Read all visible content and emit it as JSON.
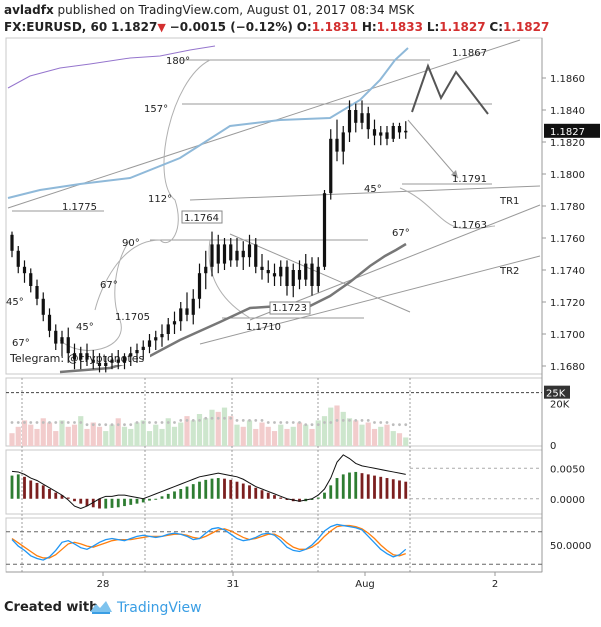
{
  "header": {
    "author": "avladfx",
    "published_text": "published on TradingView.com, August 01, 2017 08:34 MSK",
    "symbol": "FX:EURUSD, 60",
    "last": "1.1827",
    "change": "−0.0015 (−0.12%)",
    "open_label": "O:",
    "open": "1.1831",
    "high_label": "H:",
    "high": "1.1833",
    "low_label": "L:",
    "low": "1.1827",
    "close_label": "C:",
    "close": "1.1827"
  },
  "footer": {
    "created_with": "Created with",
    "brand": "TradingView"
  },
  "colors": {
    "up": "#2e7d32",
    "down": "#7b1f1f",
    "candle": "#111111",
    "ma_blue": "#8fb9d9",
    "ma_purple": "#9575cd",
    "ma_gray": "#777777",
    "stoch_k": "#2196f3",
    "stoch_d": "#ff7f0e",
    "vol_up": "#cde6cd",
    "vol_down": "#f2cccc",
    "line": "#999999",
    "text": "#222222"
  },
  "chart_data": [
    {
      "type": "candlestick",
      "pane": "price",
      "ylim": [
        1.1675,
        1.1885
      ],
      "y_ticks": [
        "1.1860",
        "1.1840",
        "1.1820",
        "1.1800",
        "1.1780",
        "1.1760",
        "1.1740",
        "1.1720",
        "1.1700",
        "1.1680"
      ],
      "last_price_label": "1.1827",
      "candles": [
        [
          1.1762,
          1.1764,
          1.1748,
          1.1752
        ],
        [
          1.1752,
          1.1755,
          1.1738,
          1.1742
        ],
        [
          1.1742,
          1.1746,
          1.1732,
          1.1738
        ],
        [
          1.1738,
          1.1741,
          1.1726,
          1.173
        ],
        [
          1.173,
          1.1734,
          1.1718,
          1.1722
        ],
        [
          1.1722,
          1.1726,
          1.1708,
          1.1712
        ],
        [
          1.1712,
          1.1716,
          1.1698,
          1.1702
        ],
        [
          1.1702,
          1.1706,
          1.169,
          1.1694
        ],
        [
          1.1694,
          1.1702,
          1.1686,
          1.1698
        ],
        [
          1.1698,
          1.1704,
          1.1682,
          1.1688
        ],
        [
          1.1688,
          1.1694,
          1.1678,
          1.1684
        ],
        [
          1.1684,
          1.1692,
          1.1678,
          1.1688
        ],
        [
          1.1688,
          1.1694,
          1.168,
          1.1684
        ],
        [
          1.1684,
          1.169,
          1.1678,
          1.1682
        ],
        [
          1.1682,
          1.1688,
          1.1676,
          1.168
        ],
        [
          1.168,
          1.1686,
          1.1676,
          1.1682
        ],
        [
          1.1682,
          1.1688,
          1.1678,
          1.1684
        ],
        [
          1.1684,
          1.169,
          1.1678,
          1.1682
        ],
        [
          1.1682,
          1.1688,
          1.1678,
          1.1686
        ],
        [
          1.1686,
          1.1692,
          1.168,
          1.1688
        ],
        [
          1.1688,
          1.1694,
          1.1682,
          1.169
        ],
        [
          1.169,
          1.1696,
          1.1684,
          1.1692
        ],
        [
          1.1692,
          1.17,
          1.1688,
          1.1696
        ],
        [
          1.1696,
          1.1702,
          1.169,
          1.1698
        ],
        [
          1.1698,
          1.1706,
          1.1692,
          1.17
        ],
        [
          1.17,
          1.171,
          1.1696,
          1.1706
        ],
        [
          1.1706,
          1.1714,
          1.17,
          1.1708
        ],
        [
          1.1708,
          1.172,
          1.1702,
          1.1716
        ],
        [
          1.1716,
          1.1726,
          1.1708,
          1.1712
        ],
        [
          1.1712,
          1.1728,
          1.1706,
          1.1722
        ],
        [
          1.1722,
          1.1744,
          1.1716,
          1.1738
        ],
        [
          1.1738,
          1.1752,
          1.1728,
          1.1742
        ],
        [
          1.1742,
          1.1764,
          1.1736,
          1.1756
        ],
        [
          1.1756,
          1.1762,
          1.1738,
          1.1744
        ],
        [
          1.1744,
          1.176,
          1.174,
          1.1756
        ],
        [
          1.1756,
          1.176,
          1.1742,
          1.1746
        ],
        [
          1.1746,
          1.176,
          1.1742,
          1.1752
        ],
        [
          1.1752,
          1.1758,
          1.174,
          1.1748
        ],
        [
          1.1748,
          1.1762,
          1.1742,
          1.1756
        ],
        [
          1.1756,
          1.176,
          1.1738,
          1.1742
        ],
        [
          1.1742,
          1.175,
          1.1734,
          1.174
        ],
        [
          1.174,
          1.1746,
          1.1732,
          1.1738
        ],
        [
          1.1738,
          1.1744,
          1.173,
          1.1736
        ],
        [
          1.1736,
          1.1746,
          1.173,
          1.1742
        ],
        [
          1.1742,
          1.1746,
          1.1724,
          1.173
        ],
        [
          1.173,
          1.1744,
          1.1723,
          1.174
        ],
        [
          1.174,
          1.1746,
          1.1728,
          1.1734
        ],
        [
          1.1734,
          1.175,
          1.173,
          1.1744
        ],
        [
          1.1744,
          1.1748,
          1.1724,
          1.173
        ],
        [
          1.173,
          1.1748,
          1.1726,
          1.1742
        ],
        [
          1.1742,
          1.179,
          1.174,
          1.1788
        ],
        [
          1.1788,
          1.1828,
          1.1784,
          1.1822
        ],
        [
          1.1822,
          1.1834,
          1.1808,
          1.1814
        ],
        [
          1.1814,
          1.183,
          1.1806,
          1.1826
        ],
        [
          1.1826,
          1.1846,
          1.182,
          1.184
        ],
        [
          1.184,
          1.1844,
          1.1826,
          1.1832
        ],
        [
          1.1832,
          1.1846,
          1.1828,
          1.1838
        ],
        [
          1.1838,
          1.1842,
          1.1822,
          1.1828
        ],
        [
          1.1828,
          1.1834,
          1.1818,
          1.1824
        ],
        [
          1.1824,
          1.183,
          1.1818,
          1.1826
        ],
        [
          1.1826,
          1.183,
          1.1818,
          1.1822
        ],
        [
          1.1822,
          1.1832,
          1.182,
          1.183
        ],
        [
          1.183,
          1.1832,
          1.1822,
          1.1826
        ],
        [
          1.1826,
          1.1833,
          1.1822,
          1.1827
        ]
      ],
      "annotations": {
        "levels": [
          {
            "text": "1.1867",
            "price": 1.1867
          },
          {
            "text": "1.1791",
            "price": 1.1791
          },
          {
            "text": "1.1763",
            "price": 1.1763
          },
          {
            "text": "1.1775",
            "price": 1.1775
          },
          {
            "text": "1.1764",
            "price": 1.1764
          },
          {
            "text": "1.1705",
            "price": 1.1705
          },
          {
            "text": "1.1723",
            "price": 1.1723
          },
          {
            "text": "1.1710",
            "price": 1.171
          }
        ],
        "angles": [
          "180°",
          "157°",
          "112°",
          "90°",
          "67°",
          "45°",
          "67°",
          "45°",
          "67°",
          "45°"
        ],
        "trendlines": [
          "TR1",
          "TR2"
        ],
        "telegram": "Telegram: @cryptonotes"
      }
    },
    {
      "type": "bar",
      "pane": "volume",
      "y_ticks": [
        "25K",
        "20K",
        "0"
      ],
      "marker_label": "25K",
      "values": [
        6,
        9,
        12,
        10,
        8,
        13,
        11,
        7,
        12,
        9,
        10,
        14,
        8,
        11,
        9,
        7,
        10,
        13,
        9,
        8,
        11,
        12,
        7,
        10,
        8,
        13,
        9,
        11,
        14,
        12,
        15,
        13,
        17,
        16,
        18,
        14,
        10,
        9,
        12,
        8,
        11,
        9,
        7,
        10,
        8,
        9,
        11,
        10,
        8,
        12,
        14,
        18,
        19,
        16,
        13,
        12,
        10,
        11,
        8,
        9,
        10,
        7,
        6,
        4
      ],
      "ma": [
        11,
        11,
        11,
        11,
        11,
        11,
        11,
        11,
        11,
        11,
        11,
        11,
        10,
        10,
        10,
        10,
        10,
        10,
        10,
        10,
        11,
        11,
        11,
        11,
        11,
        11,
        11,
        12,
        12,
        12,
        12,
        13,
        13,
        13,
        13,
        13,
        12,
        12,
        12,
        12,
        12,
        11,
        11,
        11,
        11,
        11,
        11,
        10,
        10,
        10,
        11,
        11,
        12,
        12,
        12,
        12,
        12,
        12,
        11,
        11,
        11,
        10,
        10,
        10
      ]
    },
    {
      "type": "histogram",
      "pane": "macd",
      "y_ticks": [
        "0.0050",
        "0.0000"
      ],
      "histogram": [
        0.0038,
        0.004,
        0.0036,
        0.003,
        0.0026,
        0.0022,
        0.0016,
        0.001,
        0.0006,
        0.0002,
        -0.0004,
        -0.0008,
        -0.0012,
        -0.0014,
        -0.0016,
        -0.0016,
        -0.0015,
        -0.0014,
        -0.0012,
        -0.001,
        -0.0008,
        -0.0006,
        -0.0003,
        0.0,
        0.0004,
        0.0008,
        0.0012,
        0.0016,
        0.002,
        0.0024,
        0.0028,
        0.0031,
        0.0033,
        0.0034,
        0.0033,
        0.0031,
        0.0028,
        0.0025,
        0.0022,
        0.0018,
        0.0014,
        0.001,
        0.0006,
        0.0002,
        -0.0002,
        -0.0004,
        -0.0005,
        -0.0004,
        -0.0002,
        0.0002,
        0.001,
        0.0022,
        0.0034,
        0.004,
        0.0043,
        0.0044,
        0.0042,
        0.004,
        0.0038,
        0.0036,
        0.0034,
        0.0032,
        0.003,
        0.0028
      ],
      "macd_line": [
        0.0045,
        0.0044,
        0.004,
        0.0034,
        0.003,
        0.0024,
        0.0018,
        0.0012,
        0.0006,
        -0.0002,
        -0.0012,
        -0.0016,
        -0.0012,
        -0.0006,
        0.0,
        0.0004,
        0.0004,
        0.0006,
        0.0006,
        0.0004,
        0.0002,
        0.0,
        0.0004,
        0.0008,
        0.0012,
        0.0016,
        0.002,
        0.0024,
        0.0028,
        0.0032,
        0.0036,
        0.0038,
        0.004,
        0.0042,
        0.004,
        0.0038,
        0.0036,
        0.0032,
        0.0026,
        0.002,
        0.0016,
        0.0012,
        0.0008,
        0.0004,
        0.0,
        -0.0002,
        -0.0004,
        -0.0002,
        0.0,
        0.0006,
        0.0016,
        0.0034,
        0.006,
        0.0072,
        0.0066,
        0.0058,
        0.0054,
        0.0052,
        0.005,
        0.0048,
        0.0046,
        0.0044,
        0.0042,
        0.004
      ]
    },
    {
      "type": "line",
      "pane": "stochastic",
      "y_ticks": [
        "50.0000"
      ],
      "series": [
        {
          "values": [
            60,
            48,
            40,
            30,
            25,
            22,
            28,
            40,
            55,
            58,
            52,
            45,
            42,
            48,
            55,
            60,
            62,
            60,
            58,
            62,
            66,
            68,
            66,
            64,
            66,
            70,
            72,
            70,
            66,
            60,
            62,
            72,
            80,
            82,
            78,
            70,
            62,
            58,
            60,
            64,
            70,
            72,
            68,
            58,
            46,
            40,
            38,
            42,
            50,
            62,
            76,
            84,
            88,
            86,
            84,
            82,
            78,
            66,
            54,
            42,
            34,
            28,
            32,
            42
          ]
        },
        {
          "values": [
            62,
            54,
            46,
            38,
            30,
            26,
            26,
            32,
            42,
            52,
            55,
            52,
            48,
            46,
            50,
            54,
            58,
            60,
            60,
            60,
            62,
            64,
            66,
            66,
            66,
            68,
            70,
            70,
            68,
            64,
            62,
            66,
            72,
            78,
            80,
            76,
            70,
            64,
            60,
            62,
            66,
            70,
            70,
            64,
            54,
            46,
            42,
            42,
            46,
            54,
            66,
            76,
            84,
            86,
            86,
            84,
            80,
            72,
            62,
            50,
            40,
            32,
            30,
            34
          ]
        }
      ]
    }
  ],
  "x_axis": {
    "labels": [
      "28",
      "31",
      "Aug",
      "2"
    ]
  }
}
